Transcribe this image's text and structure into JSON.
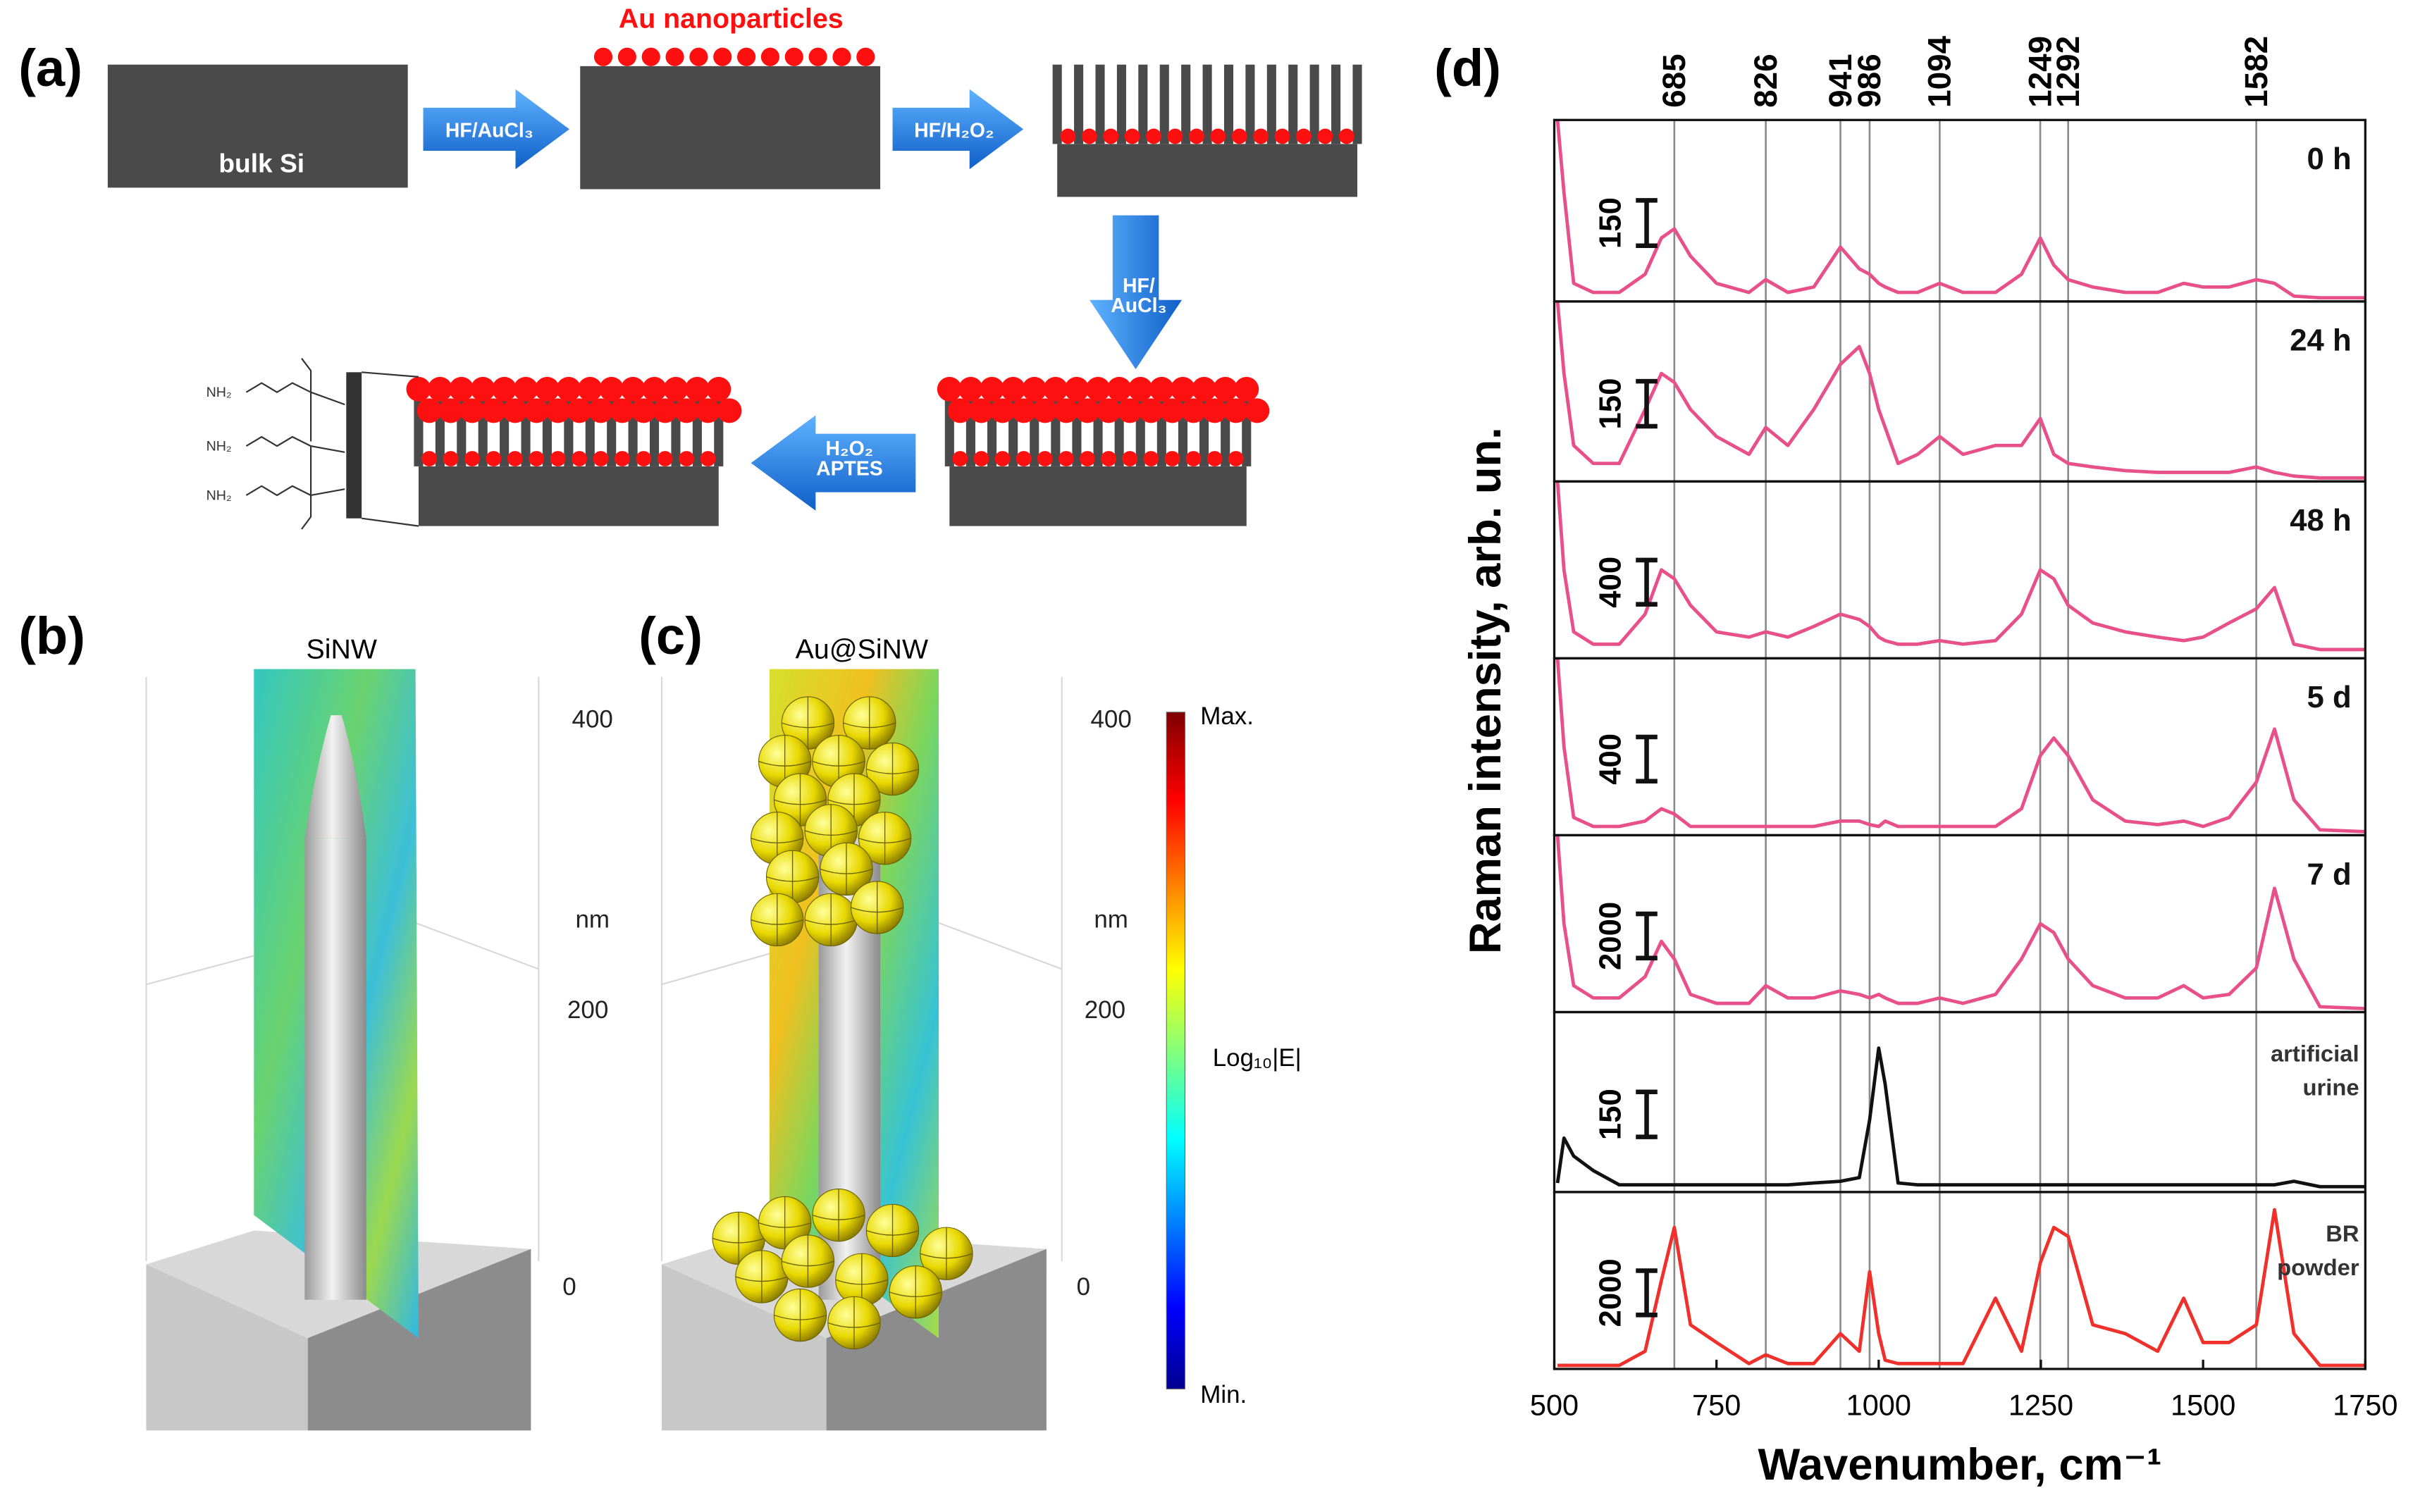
{
  "figure": {
    "panel_a": {
      "label": "(a)",
      "bulk": "bulk Si",
      "particles": "Au nanoparticles",
      "step1": "HF/AuCl₃",
      "step2": "HF/H₂O₂",
      "step3": [
        "HF/",
        "AuCl₃"
      ],
      "step4": [
        "H₂O₂",
        "APTES"
      ],
      "amine": [
        "NH₂",
        "NH₂",
        "NH₂"
      ]
    },
    "panel_b": {
      "label": "(b)",
      "title": "SiNW",
      "ticks": [
        "400",
        "nm",
        "200",
        "0"
      ]
    },
    "panel_c": {
      "label": "(c)",
      "title": "Au@SiNW",
      "ticks": [
        "400",
        "nm",
        "200",
        "0"
      ]
    },
    "colorbar": {
      "max": "Max.",
      "title": "Log₁₀|E|",
      "min": "Min."
    },
    "panel_d": {
      "label": "(d)"
    }
  },
  "chart_data": {
    "type": "line",
    "x_label": "Wavenumber, cm⁻¹",
    "y_label": "Raman intensity, arb. un.",
    "xlim": [
      500,
      1750
    ],
    "xticks": [
      500,
      750,
      1000,
      1250,
      1500,
      1750
    ],
    "peak_lines": [
      685,
      826,
      941,
      986,
      1094,
      1249,
      1292,
      1582
    ],
    "x": [
      505,
      515,
      530,
      560,
      600,
      640,
      665,
      685,
      710,
      750,
      800,
      826,
      860,
      900,
      941,
      970,
      986,
      1000,
      1010,
      1030,
      1060,
      1094,
      1130,
      1180,
      1220,
      1249,
      1270,
      1292,
      1330,
      1380,
      1430,
      1470,
      1500,
      1540,
      1582,
      1610,
      1640,
      1680,
      1750
    ],
    "series": [
      {
        "name": "0 h",
        "scale_bar": 150,
        "ylim": [
          0,
          600
        ],
        "color": "#e8508a",
        "values": [
          600,
          360,
          60,
          30,
          30,
          90,
          210,
          240,
          150,
          60,
          30,
          72,
          30,
          48,
          180,
          108,
          90,
          60,
          48,
          30,
          30,
          60,
          30,
          30,
          90,
          210,
          120,
          72,
          48,
          30,
          30,
          60,
          48,
          48,
          72,
          60,
          18,
          12,
          12
        ]
      },
      {
        "name": "24 h",
        "scale_bar": 150,
        "ylim": [
          0,
          600
        ],
        "color": "#e8508a",
        "values": [
          600,
          360,
          120,
          60,
          60,
          240,
          360,
          330,
          240,
          150,
          90,
          180,
          120,
          240,
          390,
          450,
          360,
          240,
          180,
          60,
          90,
          150,
          90,
          120,
          120,
          210,
          90,
          60,
          48,
          36,
          30,
          30,
          30,
          30,
          48,
          30,
          18,
          12,
          12
        ]
      },
      {
        "name": "48 h",
        "scale_bar": 400,
        "ylim": [
          0,
          1600
        ],
        "color": "#e8508a",
        "values": [
          1600,
          800,
          240,
          128,
          128,
          400,
          800,
          720,
          480,
          240,
          192,
          240,
          192,
          288,
          400,
          352,
          288,
          192,
          160,
          128,
          128,
          160,
          128,
          160,
          400,
          800,
          720,
          480,
          320,
          240,
          192,
          160,
          192,
          320,
          448,
          640,
          128,
          80,
          80
        ]
      },
      {
        "name": "5 d",
        "scale_bar": 400,
        "ylim": [
          0,
          1600
        ],
        "color": "#e8508a",
        "values": [
          1600,
          800,
          160,
          80,
          80,
          128,
          240,
          192,
          80,
          80,
          80,
          80,
          80,
          80,
          128,
          128,
          96,
          80,
          128,
          80,
          80,
          80,
          80,
          80,
          240,
          720,
          880,
          720,
          320,
          128,
          96,
          128,
          80,
          160,
          480,
          960,
          320,
          48,
          32
        ]
      },
      {
        "name": "7 d",
        "scale_bar": 2000,
        "ylim": [
          0,
          8000
        ],
        "color": "#e8508a",
        "values": [
          8000,
          4000,
          1200,
          640,
          640,
          1600,
          3200,
          2400,
          800,
          400,
          400,
          1200,
          640,
          640,
          960,
          800,
          640,
          800,
          640,
          400,
          400,
          640,
          400,
          800,
          2400,
          4000,
          3600,
          2400,
          1200,
          640,
          640,
          1200,
          640,
          800,
          2000,
          5600,
          2400,
          240,
          160
        ]
      },
      {
        "name": "artificial urine",
        "scale_bar": 150,
        "ylim": [
          0,
          600
        ],
        "color": "#111111",
        "values": [
          30,
          180,
          120,
          72,
          24,
          24,
          24,
          24,
          24,
          24,
          24,
          24,
          24,
          30,
          36,
          48,
          240,
          480,
          360,
          30,
          24,
          24,
          24,
          24,
          24,
          24,
          24,
          24,
          24,
          24,
          24,
          24,
          24,
          24,
          24,
          24,
          36,
          18,
          18
        ]
      },
      {
        "name": "BR powder",
        "scale_bar": 2000,
        "ylim": [
          0,
          8000
        ],
        "color": "#f0302a",
        "values": [
          160,
          160,
          160,
          160,
          160,
          800,
          4000,
          6400,
          2000,
          1200,
          240,
          640,
          240,
          240,
          1600,
          800,
          4400,
          1600,
          400,
          240,
          240,
          240,
          240,
          3200,
          800,
          4800,
          6400,
          6000,
          2000,
          1600,
          800,
          3200,
          1200,
          1200,
          2000,
          7200,
          1600,
          160,
          160
        ]
      }
    ]
  }
}
